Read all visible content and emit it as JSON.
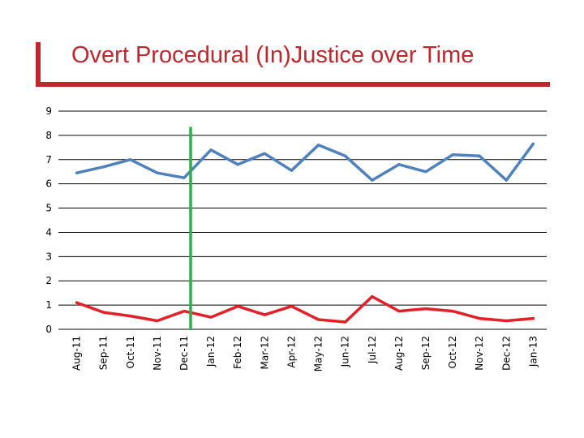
{
  "title": "Overt Procedural (In)Justice over Time",
  "colors": {
    "accent": "#C0272D",
    "series_upper": "#4F81BD",
    "series_lower": "#E32028",
    "marker": "#2BB04A",
    "grid": "#000000"
  },
  "chart_data": {
    "type": "line",
    "title": "Overt Procedural (In)Justice over Time",
    "xlabel": "",
    "ylabel": "",
    "ylim": [
      0,
      9
    ],
    "yticks": [
      "0",
      "1",
      "2",
      "3",
      "4",
      "5",
      "6",
      "7",
      "8",
      "9"
    ],
    "grid": true,
    "categories": [
      "Aug-11",
      "Sep-11",
      "Oct-11",
      "Nov-11",
      "Dec-11",
      "Jan-12",
      "Feb-12",
      "Mar-12",
      "Apr-12",
      "May-12",
      "Jun-12",
      "Jul-12",
      "Aug-12",
      "Sep-12",
      "Oct-12",
      "Nov-12",
      "Dec-12",
      "Jan-13"
    ],
    "series": [
      {
        "values": [
          6.45,
          6.7,
          7.0,
          6.45,
          6.25,
          7.4,
          6.8,
          7.25,
          6.55,
          7.6,
          7.15,
          6.15,
          6.8,
          6.5,
          7.2,
          7.15,
          6.15,
          7.65
        ]
      },
      {
        "values": [
          1.1,
          0.7,
          0.55,
          0.35,
          0.75,
          0.5,
          0.95,
          0.6,
          0.95,
          0.4,
          0.3,
          1.35,
          0.75,
          0.85,
          0.75,
          0.45,
          0.35,
          0.45
        ]
      }
    ],
    "marker_line": {
      "category": "Dec-11",
      "top_value": 8.35
    }
  }
}
